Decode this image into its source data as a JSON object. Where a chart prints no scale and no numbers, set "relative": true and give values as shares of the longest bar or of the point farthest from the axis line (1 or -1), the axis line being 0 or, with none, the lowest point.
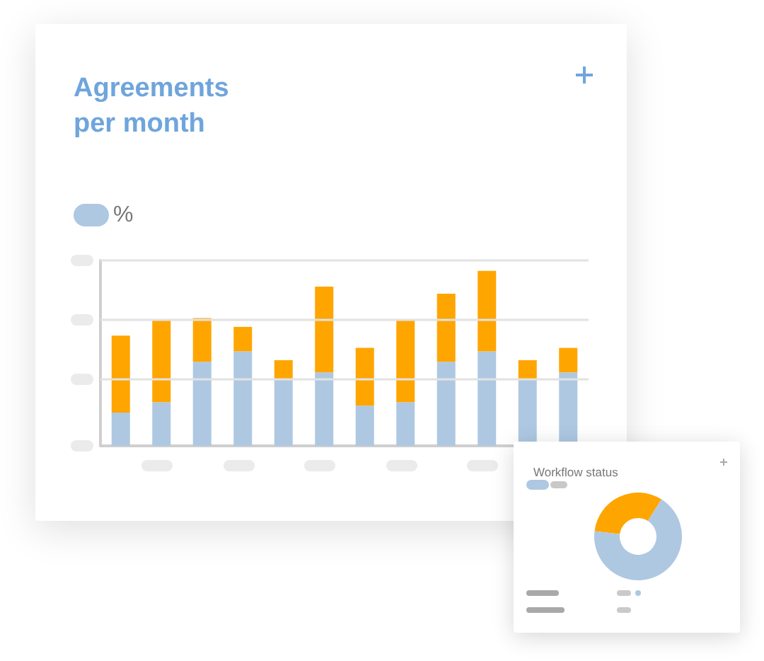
{
  "chart_data": [
    {
      "type": "bar",
      "title": "Agreements per month",
      "categories": [
        null,
        null,
        null,
        null,
        null,
        null,
        null,
        null,
        null,
        null,
        null,
        null
      ],
      "series": [
        {
          "name": "%",
          "color": "#aec8e2",
          "values": [
            0.19,
            0.25,
            0.48,
            0.54,
            0.38,
            0.42,
            0.23,
            0.25,
            0.48,
            0.54,
            0.38,
            0.42
          ]
        },
        {
          "color": "#ffa500",
          "values": [
            0.44,
            0.47,
            0.25,
            0.14,
            0.11,
            0.49,
            0.33,
            0.47,
            0.39,
            0.46,
            0.11,
            0.14
          ]
        }
      ],
      "ref_lines": [
        {
          "axis": "y",
          "value": 0.38,
          "color": "#e2e2e2",
          "line_style": "solid"
        },
        {
          "axis": "y",
          "value": 0.72,
          "color": "#e2e2e2",
          "line_style": "solid"
        },
        {
          "axis": "y",
          "value": 1.06,
          "color": "#e2e2e2",
          "line_style": "solid"
        }
      ],
      "stacked": true,
      "relative": true,
      "legend": "top left"
    },
    {
      "type": "donut",
      "title": "Workflow status",
      "categories": [
        null,
        null
      ],
      "values": [
        32,
        68
      ],
      "colors": [
        "#ffa500",
        "#aec8e2"
      ]
    }
  ]
}
